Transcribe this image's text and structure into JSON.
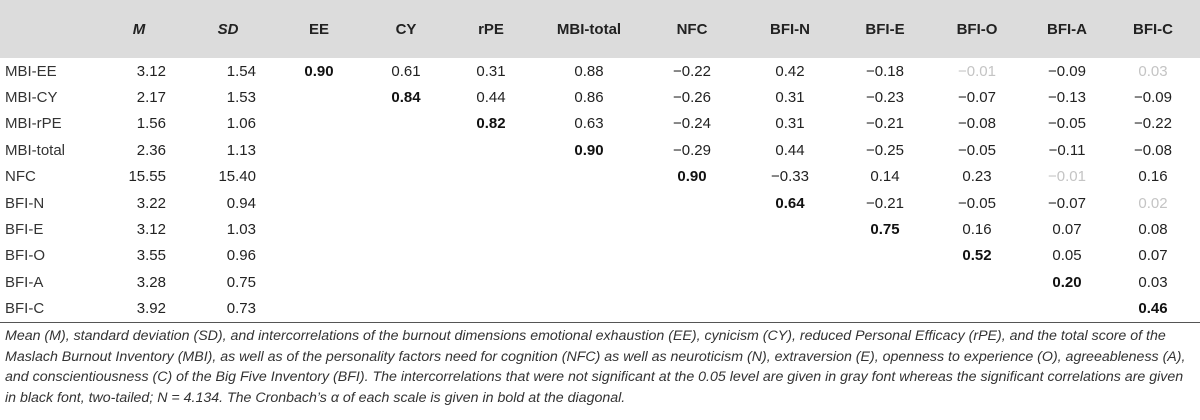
{
  "table": {
    "columns": [
      "",
      "M",
      "SD",
      "EE",
      "CY",
      "rPE",
      "MBI-total",
      "NFC",
      "BFI-N",
      "BFI-E",
      "BFI-O",
      "BFI-A",
      "BFI-C"
    ],
    "rows": [
      {
        "label": "MBI-EE",
        "cells": [
          {
            "v": "3.12",
            "s": ""
          },
          {
            "v": "1.54",
            "s": ""
          },
          {
            "v": "0.90",
            "s": "bold"
          },
          {
            "v": "0.61",
            "s": ""
          },
          {
            "v": "0.31",
            "s": ""
          },
          {
            "v": "0.88",
            "s": ""
          },
          {
            "v": "−0.22",
            "s": ""
          },
          {
            "v": "0.42",
            "s": ""
          },
          {
            "v": "−0.18",
            "s": ""
          },
          {
            "v": "−0.01",
            "s": "gray"
          },
          {
            "v": "−0.09",
            "s": ""
          },
          {
            "v": "0.03",
            "s": "gray"
          }
        ]
      },
      {
        "label": "MBI-CY",
        "cells": [
          {
            "v": "2.17",
            "s": ""
          },
          {
            "v": "1.53",
            "s": ""
          },
          {
            "v": "",
            "s": ""
          },
          {
            "v": "0.84",
            "s": "bold"
          },
          {
            "v": "0.44",
            "s": ""
          },
          {
            "v": "0.86",
            "s": ""
          },
          {
            "v": "−0.26",
            "s": ""
          },
          {
            "v": "0.31",
            "s": ""
          },
          {
            "v": "−0.23",
            "s": ""
          },
          {
            "v": "−0.07",
            "s": ""
          },
          {
            "v": "−0.13",
            "s": ""
          },
          {
            "v": "−0.09",
            "s": ""
          }
        ]
      },
      {
        "label": "MBI-rPE",
        "cells": [
          {
            "v": "1.56",
            "s": ""
          },
          {
            "v": "1.06",
            "s": ""
          },
          {
            "v": "",
            "s": ""
          },
          {
            "v": "",
            "s": ""
          },
          {
            "v": "0.82",
            "s": "bold"
          },
          {
            "v": "0.63",
            "s": ""
          },
          {
            "v": "−0.24",
            "s": ""
          },
          {
            "v": "0.31",
            "s": ""
          },
          {
            "v": "−0.21",
            "s": ""
          },
          {
            "v": "−0.08",
            "s": ""
          },
          {
            "v": "−0.05",
            "s": ""
          },
          {
            "v": "−0.22",
            "s": ""
          }
        ]
      },
      {
        "label": "MBI-total",
        "cells": [
          {
            "v": "2.36",
            "s": ""
          },
          {
            "v": "1.13",
            "s": ""
          },
          {
            "v": "",
            "s": ""
          },
          {
            "v": "",
            "s": ""
          },
          {
            "v": "",
            "s": ""
          },
          {
            "v": "0.90",
            "s": "bold"
          },
          {
            "v": "−0.29",
            "s": ""
          },
          {
            "v": "0.44",
            "s": ""
          },
          {
            "v": "−0.25",
            "s": ""
          },
          {
            "v": "−0.05",
            "s": ""
          },
          {
            "v": "−0.11",
            "s": ""
          },
          {
            "v": "−0.08",
            "s": ""
          }
        ]
      },
      {
        "label": "NFC",
        "cells": [
          {
            "v": "15.55",
            "s": ""
          },
          {
            "v": "15.40",
            "s": ""
          },
          {
            "v": "",
            "s": ""
          },
          {
            "v": "",
            "s": ""
          },
          {
            "v": "",
            "s": ""
          },
          {
            "v": "",
            "s": ""
          },
          {
            "v": "0.90",
            "s": "bold"
          },
          {
            "v": "−0.33",
            "s": ""
          },
          {
            "v": "0.14",
            "s": ""
          },
          {
            "v": "0.23",
            "s": ""
          },
          {
            "v": "−0.01",
            "s": "gray"
          },
          {
            "v": "0.16",
            "s": ""
          }
        ]
      },
      {
        "label": "BFI-N",
        "cells": [
          {
            "v": "3.22",
            "s": ""
          },
          {
            "v": "0.94",
            "s": ""
          },
          {
            "v": "",
            "s": ""
          },
          {
            "v": "",
            "s": ""
          },
          {
            "v": "",
            "s": ""
          },
          {
            "v": "",
            "s": ""
          },
          {
            "v": "",
            "s": ""
          },
          {
            "v": "0.64",
            "s": "bold"
          },
          {
            "v": "−0.21",
            "s": ""
          },
          {
            "v": "−0.05",
            "s": ""
          },
          {
            "v": "−0.07",
            "s": ""
          },
          {
            "v": "0.02",
            "s": "gray"
          }
        ]
      },
      {
        "label": "BFI-E",
        "cells": [
          {
            "v": "3.12",
            "s": ""
          },
          {
            "v": "1.03",
            "s": ""
          },
          {
            "v": "",
            "s": ""
          },
          {
            "v": "",
            "s": ""
          },
          {
            "v": "",
            "s": ""
          },
          {
            "v": "",
            "s": ""
          },
          {
            "v": "",
            "s": ""
          },
          {
            "v": "",
            "s": ""
          },
          {
            "v": "0.75",
            "s": "bold"
          },
          {
            "v": "0.16",
            "s": ""
          },
          {
            "v": "0.07",
            "s": ""
          },
          {
            "v": "0.08",
            "s": ""
          }
        ]
      },
      {
        "label": "BFI-O",
        "cells": [
          {
            "v": "3.55",
            "s": ""
          },
          {
            "v": "0.96",
            "s": ""
          },
          {
            "v": "",
            "s": ""
          },
          {
            "v": "",
            "s": ""
          },
          {
            "v": "",
            "s": ""
          },
          {
            "v": "",
            "s": ""
          },
          {
            "v": "",
            "s": ""
          },
          {
            "v": "",
            "s": ""
          },
          {
            "v": "",
            "s": ""
          },
          {
            "v": "0.52",
            "s": "bold"
          },
          {
            "v": "0.05",
            "s": ""
          },
          {
            "v": "0.07",
            "s": ""
          }
        ]
      },
      {
        "label": "BFI-A",
        "cells": [
          {
            "v": "3.28",
            "s": ""
          },
          {
            "v": "0.75",
            "s": ""
          },
          {
            "v": "",
            "s": ""
          },
          {
            "v": "",
            "s": ""
          },
          {
            "v": "",
            "s": ""
          },
          {
            "v": "",
            "s": ""
          },
          {
            "v": "",
            "s": ""
          },
          {
            "v": "",
            "s": ""
          },
          {
            "v": "",
            "s": ""
          },
          {
            "v": "",
            "s": ""
          },
          {
            "v": "0.20",
            "s": "bold"
          },
          {
            "v": "0.03",
            "s": ""
          }
        ]
      },
      {
        "label": "BFI-C",
        "cells": [
          {
            "v": "3.92",
            "s": ""
          },
          {
            "v": "0.73",
            "s": ""
          },
          {
            "v": "",
            "s": ""
          },
          {
            "v": "",
            "s": ""
          },
          {
            "v": "",
            "s": ""
          },
          {
            "v": "",
            "s": ""
          },
          {
            "v": "",
            "s": ""
          },
          {
            "v": "",
            "s": ""
          },
          {
            "v": "",
            "s": ""
          },
          {
            "v": "",
            "s": ""
          },
          {
            "v": "",
            "s": ""
          },
          {
            "v": "0.46",
            "s": "bold"
          }
        ]
      }
    ]
  },
  "note": "Mean (M), standard deviation (SD), and intercorrelations of the burnout dimensions emotional exhaustion (EE), cynicism (CY), reduced Personal Efficacy (rPE), and the total score of the Maslach Burnout Inventory (MBI), as well as of the personality factors need for cognition (NFC) as well as neuroticism (N), extraversion (E), openness to experience (O), agreeableness (A), and conscientiousness (C) of the Big Five Inventory (BFI). The intercorrelations that were not significant at the 0.05 level are given in gray font whereas the significant correlations are given in black font, two-tailed; N = 4.134. The Cronbach’s α of each scale is given in bold at the diagonal."
}
